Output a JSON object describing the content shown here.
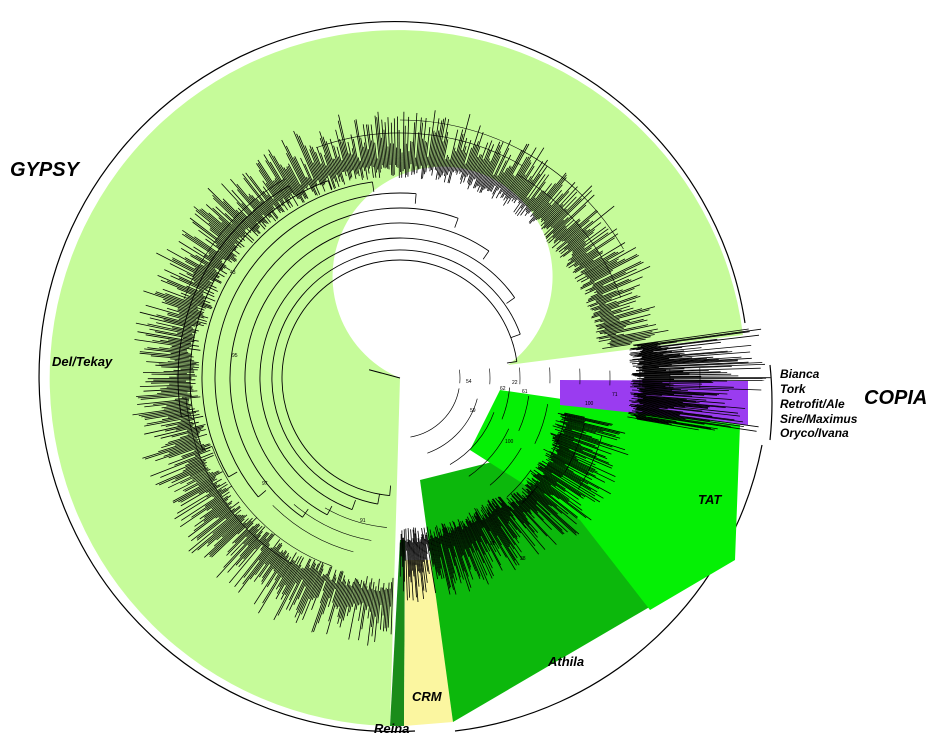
{
  "superfamilies": {
    "gypsy": "GYPSY",
    "copia": "COPIA"
  },
  "clades": {
    "del_tekay": "Del/Tekay",
    "crm": "CRM",
    "reina": "Reina",
    "athila": "Athila",
    "tat": "TAT",
    "bianca": "Bianca",
    "tork": "Tork",
    "retrofit_ale": "Retrofit/Ale",
    "sire_maximus": "Sire/Maximus",
    "oryco_ivana": "Oryco/Ivana"
  },
  "colors": {
    "del_tekay": "#c6fb9a",
    "reina": "#1a8c1a",
    "crm": "#fbf6a0",
    "athila": "#0cb80c",
    "tat": "#05f005",
    "copia": "#9a3cf0",
    "branches": "#000000",
    "outer_ring": "#000000"
  },
  "node_labels": [
    "54",
    "62",
    "61",
    "22",
    "100",
    "98",
    "100",
    "43",
    "95",
    "97",
    "91",
    "88",
    "38",
    "59",
    "71"
  ]
}
